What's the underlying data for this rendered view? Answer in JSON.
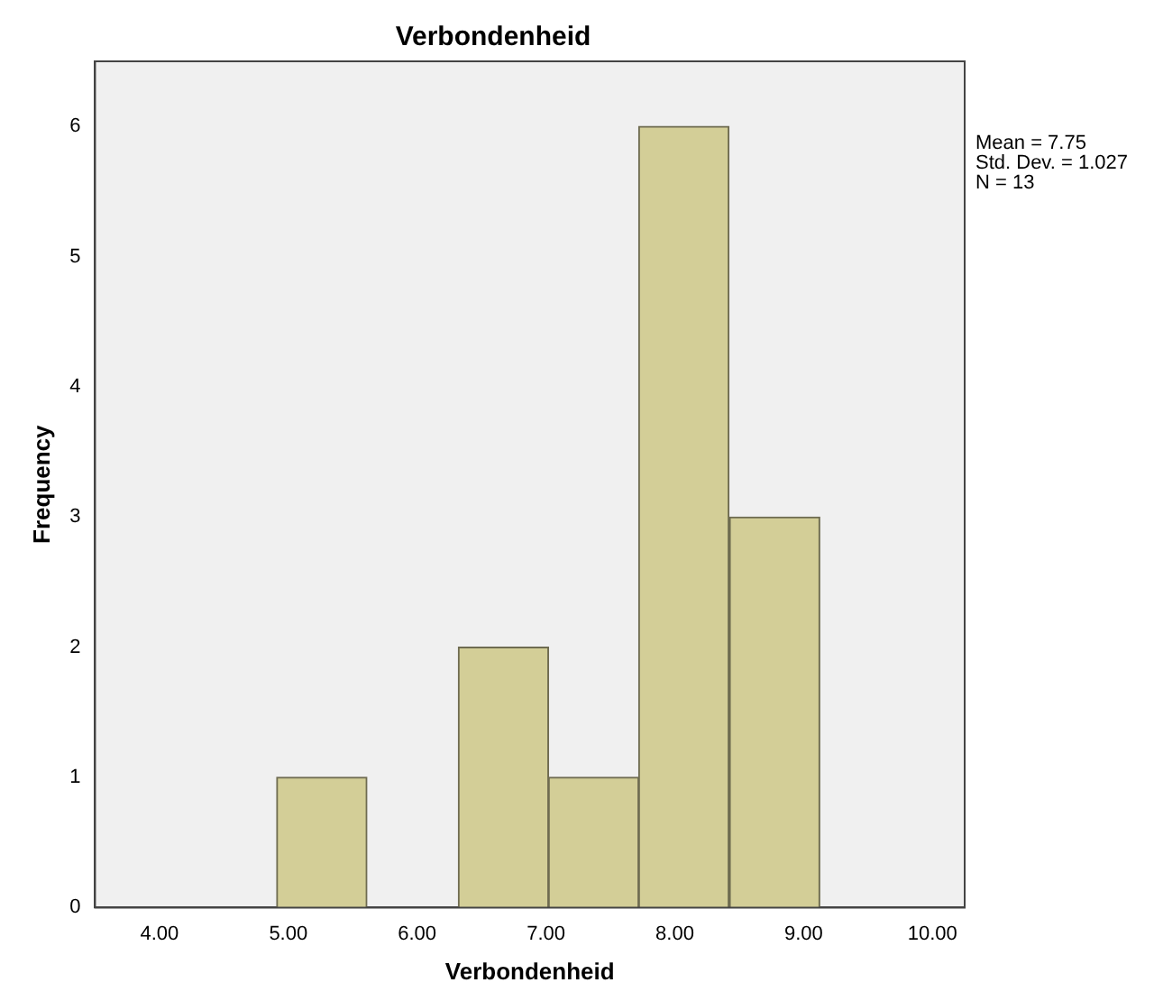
{
  "chart_data": {
    "type": "histogram",
    "title": "Verbondenheid",
    "xlabel": "Verbondenheid",
    "ylabel": "Frequency",
    "bins": [
      4.91,
      5.61,
      6.32,
      7.02,
      7.72,
      8.42,
      9.13
    ],
    "values": [
      1,
      0,
      2,
      1,
      6,
      3
    ],
    "color": "#d3ce97",
    "xlim": [
      3.5,
      10.25
    ],
    "xticks": [
      {
        "value": 4,
        "label": "4.00"
      },
      {
        "value": 5,
        "label": "5.00"
      },
      {
        "value": 6,
        "label": "6.00"
      },
      {
        "value": 7,
        "label": "7.00"
      },
      {
        "value": 8,
        "label": "8.00"
      },
      {
        "value": 9,
        "label": "9.00"
      },
      {
        "value": 10,
        "label": "10.00"
      }
    ],
    "ylim": [
      0,
      6.5
    ],
    "yticks": [
      0,
      1,
      2,
      3,
      4,
      5,
      6
    ],
    "annotations": [
      "Mean = 7.75",
      "Std. Dev. = 1.027",
      "N = 13"
    ]
  }
}
